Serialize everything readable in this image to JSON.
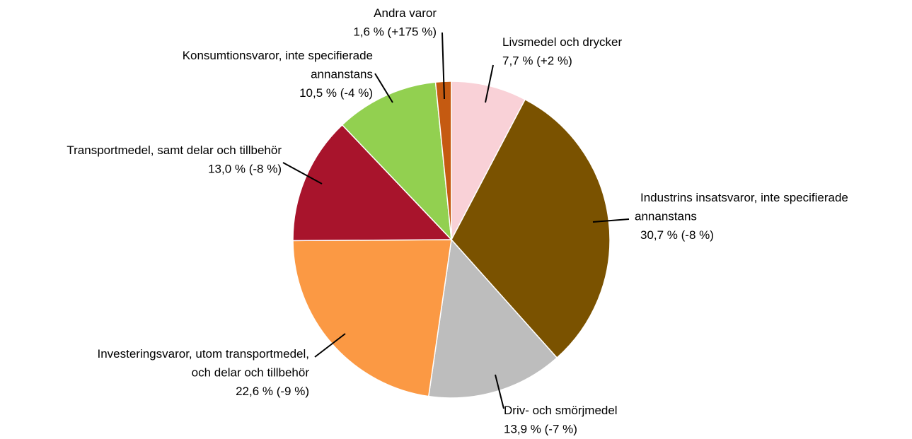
{
  "chart_data": {
    "type": "pie",
    "categories": [
      "Livsmedel och drycker",
      "Industrins insatsvaror, inte specifierade annanstans",
      "Driv- och smörjmedel",
      "Investeringsvaror, utom transportmedel, och delar och tillbehör",
      "Transportmedel, samt delar och tillbehör",
      "Konsumtionsvaror, inte specifierade annanstans",
      "Andra varor"
    ],
    "values": [
      7.7,
      30.7,
      13.9,
      22.6,
      13.0,
      10.5,
      1.6
    ],
    "value_labels": [
      "7,7 % (+2 %)",
      "30,7 % (-8 %)",
      "13,9 % (-7 %)",
      "22,6 % (-9 %)",
      "13,0 % (-8 %)",
      "10,5 % (-4 %)",
      "1,6 % (+175 %)"
    ],
    "colors": [
      "#f9d1d7",
      "#7a5200",
      "#bdbdbd",
      "#fb9944",
      "#a8142c",
      "#92d050",
      "#c55a11"
    ]
  }
}
